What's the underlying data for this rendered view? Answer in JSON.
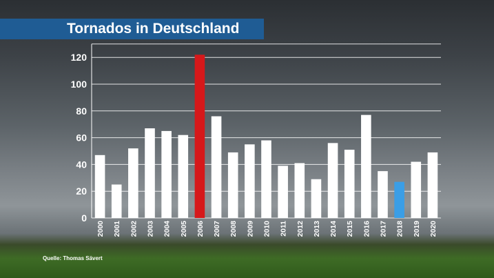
{
  "title": "Tornados in Deutschland",
  "source": "Quelle: Thomas Sävert",
  "colors": {
    "bar": "#ffffff",
    "highlight_max": "#d6181a",
    "highlight_current": "#3a9ee6",
    "title_bar": "#1f5c94"
  },
  "chart_data": {
    "type": "bar",
    "title": "Tornados in Deutschland",
    "xlabel": "",
    "ylabel": "",
    "ylim": [
      0,
      130
    ],
    "yticks": [
      0,
      20,
      40,
      60,
      80,
      100,
      120
    ],
    "grid": true,
    "categories": [
      "2000",
      "2001",
      "2002",
      "2003",
      "2004",
      "2005",
      "2006",
      "2007",
      "2008",
      "2009",
      "2010",
      "2011",
      "2012",
      "2013",
      "2014",
      "2015",
      "2016",
      "2017",
      "2018",
      "2019",
      "2020"
    ],
    "values": [
      47,
      25,
      52,
      67,
      65,
      62,
      122,
      76,
      49,
      55,
      58,
      39,
      41,
      29,
      56,
      51,
      77,
      35,
      27,
      42,
      49
    ],
    "highlights": {
      "2006": "red",
      "2018": "blue"
    }
  }
}
